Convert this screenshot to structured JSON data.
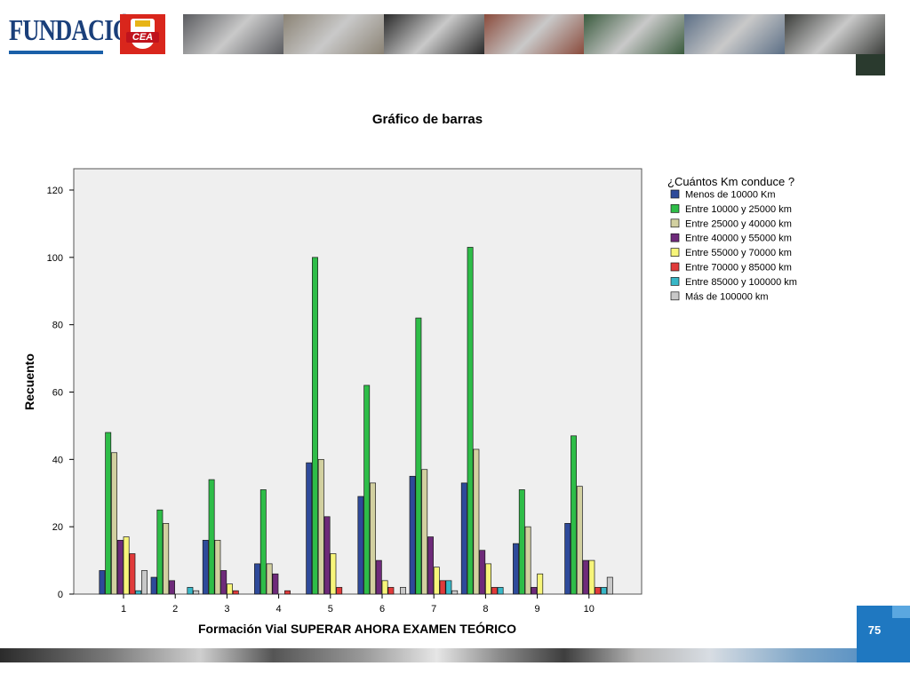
{
  "header": {
    "logo_text": "FUNDACIÓN",
    "cea_text": "CEA"
  },
  "page_number": "75",
  "colors": {
    "plot_background": "#efefef",
    "page_box": "#1f78c1",
    "logo_blue": "#1a3f7a",
    "cea_red": "#d9261c"
  },
  "photo_strip": [
    "#5b5c60",
    "#8b8375",
    "#2a2a2a",
    "#8a4b3c",
    "#3a5b3e",
    "#5c6f86",
    "#3b3d3a"
  ],
  "chart_data": {
    "type": "bar",
    "title": "Gráfico de barras",
    "xlabel": "Formación Vial  SUPERAR AHORA EXAMEN TEÓRICO",
    "ylabel": "Recuento",
    "ylim": [
      0,
      120
    ],
    "yticks": [
      0,
      20,
      40,
      60,
      80,
      100,
      120
    ],
    "grid": false,
    "legend_position": "right",
    "legend_title": "¿Cuántos Km conduce ?",
    "categories": [
      "1",
      "2",
      "3",
      "4",
      "5",
      "6",
      "7",
      "8",
      "9",
      "10"
    ],
    "series": [
      {
        "name": "Menos de 10000 Km",
        "color": "#2e4a9a",
        "values": [
          7,
          5,
          16,
          9,
          39,
          29,
          35,
          33,
          15,
          21
        ]
      },
      {
        "name": "Entre 10000 y 25000 km",
        "color": "#2ebd48",
        "values": [
          48,
          25,
          34,
          31,
          100,
          62,
          82,
          103,
          31,
          47
        ]
      },
      {
        "name": "Entre 25000 y 40000 km",
        "color": "#d2d0a0",
        "values": [
          42,
          21,
          16,
          9,
          40,
          33,
          37,
          43,
          20,
          32
        ]
      },
      {
        "name": "Entre 40000 y 55000 km",
        "color": "#6e2a7a",
        "values": [
          16,
          4,
          7,
          6,
          23,
          10,
          17,
          13,
          2,
          10
        ]
      },
      {
        "name": "Entre 55000 y 70000 km",
        "color": "#f7f57a",
        "values": [
          17,
          0,
          3,
          0,
          12,
          4,
          8,
          9,
          6,
          10
        ]
      },
      {
        "name": "Entre 70000 y 85000 km",
        "color": "#e03a3a",
        "values": [
          12,
          0,
          1,
          1,
          2,
          2,
          4,
          2,
          0,
          2
        ]
      },
      {
        "name": "Entre 85000 y 100000 km",
        "color": "#38b7c7",
        "values": [
          1,
          2,
          0,
          0,
          0,
          0,
          4,
          2,
          0,
          2
        ]
      },
      {
        "name": "Más de 100000 km",
        "color": "#c8c8c8",
        "values": [
          7,
          1,
          0,
          0,
          0,
          2,
          1,
          0,
          0,
          5
        ]
      }
    ]
  }
}
